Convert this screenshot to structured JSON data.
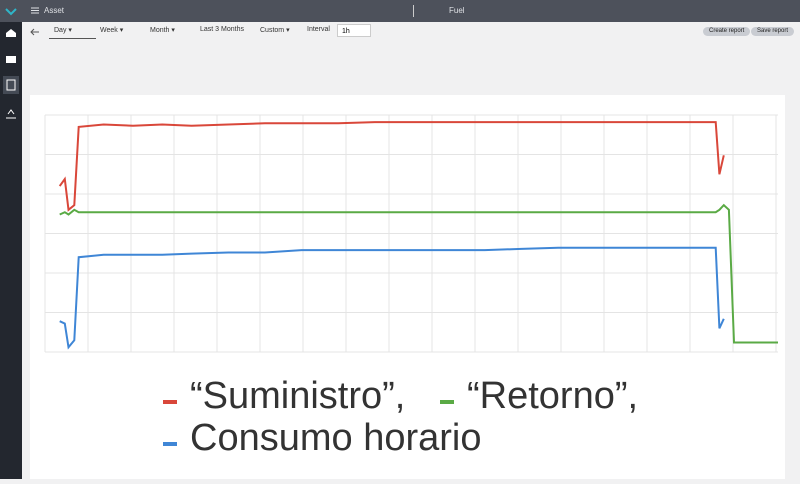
{
  "header": {
    "section": "Asset",
    "title": "Fuel"
  },
  "toolbar": {
    "ranges": [
      "Day",
      "Week",
      "Month",
      "Last 3 Months",
      "Custom"
    ],
    "interval_label": "Interval",
    "interval_value": "1h",
    "buttons": [
      "Create report",
      "Save report"
    ]
  },
  "chart_data": {
    "type": "line",
    "xlim": [
      0,
      100
    ],
    "ylim": [
      0,
      100
    ],
    "grid": true,
    "x": [
      2,
      2.7,
      3.2,
      4,
      4.6,
      8,
      12,
      16,
      20,
      25,
      30,
      35,
      40,
      45,
      50,
      55,
      60,
      65,
      70,
      75,
      80,
      85,
      90,
      91.5,
      92,
      92.6,
      93.3,
      94,
      100
    ],
    "series": [
      {
        "name": "“Suministro”,",
        "color": "#d9473a",
        "values": [
          70,
          73,
          60,
          62,
          95,
          96,
          95.5,
          96,
          95.5,
          96,
          96.5,
          96.5,
          96.5,
          97,
          97,
          97,
          97,
          97,
          97,
          97,
          97,
          97,
          97,
          97,
          75,
          83,
          null,
          null,
          null
        ]
      },
      {
        "name": "“Retorno”,",
        "color": "#5aaa45",
        "values": [
          58,
          59,
          58,
          60,
          59,
          59,
          59,
          59,
          59,
          59,
          59,
          59,
          59,
          59,
          59,
          59,
          59,
          59,
          59,
          59,
          59,
          59,
          59,
          59,
          60,
          62,
          60,
          4,
          4
        ]
      },
      {
        "name": "Consumo horario",
        "color": "#3f86d6",
        "values": [
          13,
          12,
          2,
          5,
          40,
          41,
          41,
          41,
          41.5,
          42,
          42,
          43,
          43,
          43,
          43,
          43,
          43,
          43.5,
          44,
          44,
          44,
          44,
          44,
          44,
          10,
          14,
          null,
          null,
          null
        ]
      }
    ]
  }
}
